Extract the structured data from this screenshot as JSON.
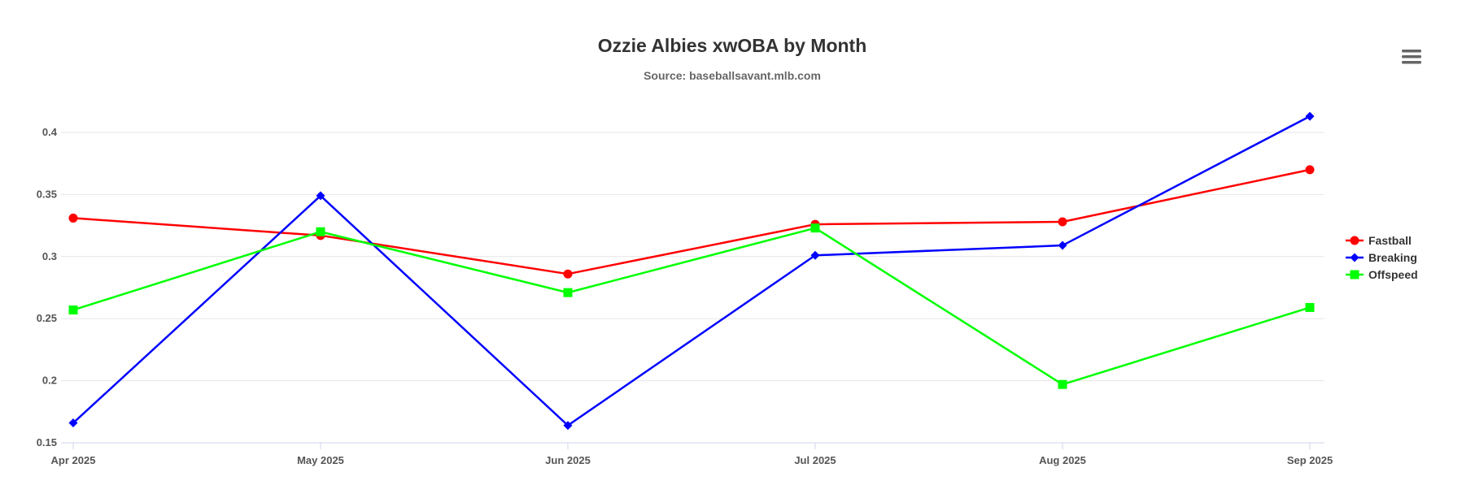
{
  "chart_data": {
    "type": "line",
    "title": "Ozzie Albies xwOBA by Month",
    "subtitle": "Source: baseballsavant.mlb.com",
    "categories": [
      "Apr 2025",
      "May 2025",
      "Jun 2025",
      "Jul 2025",
      "Aug 2025",
      "Sep 2025"
    ],
    "ylim": [
      0.15,
      0.4
    ],
    "yticks": [
      {
        "value": 0.15,
        "label": "0.15"
      },
      {
        "value": 0.2,
        "label": "0.2"
      },
      {
        "value": 0.25,
        "label": "0.25"
      },
      {
        "value": 0.3,
        "label": "0.3"
      },
      {
        "value": 0.35,
        "label": "0.35"
      },
      {
        "value": 0.4,
        "label": "0.4"
      }
    ],
    "grid": true,
    "legend": "right",
    "series": [
      {
        "name": "Fastball",
        "color": "#ff0000",
        "marker": "circle",
        "values": [
          0.331,
          0.317,
          0.286,
          0.326,
          0.328,
          0.37
        ]
      },
      {
        "name": "Breaking",
        "color": "#0000ff",
        "marker": "diamond",
        "values": [
          0.166,
          0.349,
          0.164,
          0.301,
          0.309,
          0.413
        ]
      },
      {
        "name": "Offspeed",
        "color": "#00ff00",
        "marker": "square",
        "values": [
          0.257,
          0.32,
          0.271,
          0.323,
          0.197,
          0.259
        ]
      }
    ]
  },
  "menu": {
    "icon": "hamburger-menu-icon"
  }
}
